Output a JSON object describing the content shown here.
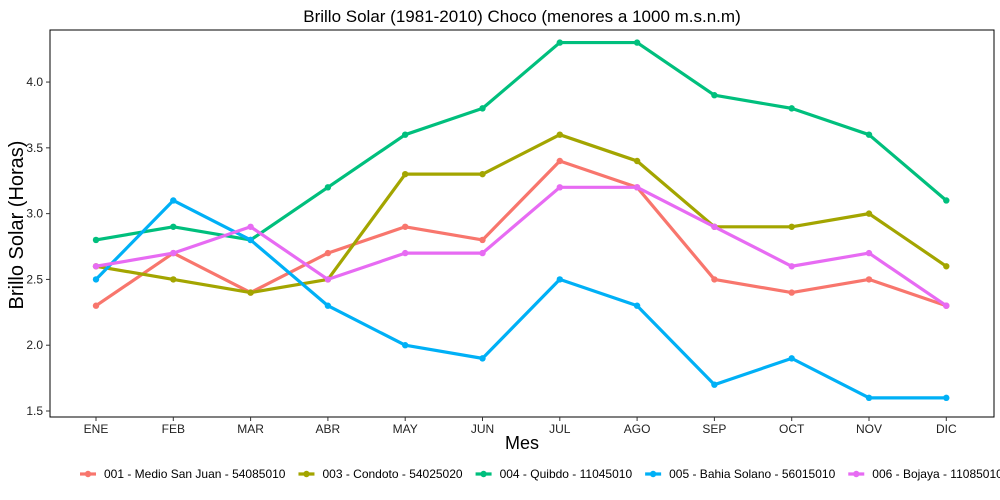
{
  "chart_data": {
    "type": "line",
    "title": "Brillo Solar (1981-2010) Choco (menores a 1000 m.s.n.m)",
    "xlabel": "Mes",
    "ylabel": "Brillo Solar (Horas)",
    "categories": [
      "ENE",
      "FEB",
      "MAR",
      "ABR",
      "MAY",
      "JUN",
      "JUL",
      "AGO",
      "SEP",
      "OCT",
      "NOV",
      "DIC"
    ],
    "ylim": [
      1.5,
      4.35
    ],
    "yticks": [
      "1.5",
      "2.0",
      "2.5",
      "3.0",
      "3.5",
      "4.0"
    ],
    "grid": false,
    "legend_position": "bottom",
    "series": [
      {
        "name": "001 - Medio San Juan - 54085010",
        "color": "#F8766D",
        "values": [
          2.3,
          2.7,
          2.4,
          2.7,
          2.9,
          2.8,
          3.4,
          3.2,
          2.5,
          2.4,
          2.5,
          2.3
        ]
      },
      {
        "name": "003 - Condoto - 54025020",
        "color": "#A3A500",
        "values": [
          2.6,
          2.5,
          2.4,
          2.5,
          3.3,
          3.3,
          3.6,
          3.4,
          2.9,
          2.9,
          3.0,
          2.6
        ]
      },
      {
        "name": "004 - Quibdo - 11045010",
        "color": "#00BF7D",
        "values": [
          2.8,
          2.9,
          2.8,
          3.2,
          3.6,
          3.8,
          4.3,
          4.3,
          3.9,
          3.8,
          3.6,
          3.1
        ]
      },
      {
        "name": "005 - Bahia Solano - 56015010",
        "color": "#00B0F6",
        "values": [
          2.5,
          3.1,
          2.8,
          2.3,
          2.0,
          1.9,
          2.5,
          2.3,
          1.7,
          1.9,
          1.6,
          1.6
        ]
      },
      {
        "name": "006 - Bojaya - 11085010",
        "color": "#E76BF3",
        "values": [
          2.6,
          2.7,
          2.9,
          2.5,
          2.7,
          2.7,
          3.2,
          3.2,
          2.9,
          2.6,
          2.7,
          2.3
        ]
      }
    ]
  }
}
